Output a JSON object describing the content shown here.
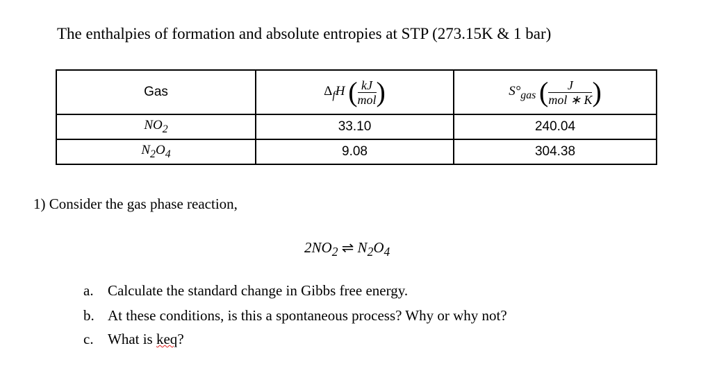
{
  "title": "The enthalpies of formation and absolute entropies at STP (273.15K & 1 bar)",
  "table": {
    "headers": {
      "gas": "Gas",
      "dh_sym": "Δ",
      "dh_sub": "f",
      "dh_var": "H",
      "dh_num": "kJ",
      "dh_den": "mol",
      "s_sym": "S°",
      "s_sub": "gas",
      "s_num": "J",
      "s_den": "mol ∗ K"
    },
    "rows": [
      {
        "gas": "NO",
        "gas_sub1": "",
        "gas_sub2": "2",
        "dh": "33.10",
        "s": "240.04"
      },
      {
        "gas_a": "N",
        "gas_sub1": "2",
        "gas_b": "O",
        "gas_sub2": "4",
        "dh": "9.08",
        "s": "304.38"
      }
    ]
  },
  "question": "1)  Consider the gas phase reaction,",
  "reaction": {
    "left": "2NO",
    "left_sub": "2",
    "arrow": "⇌",
    "right_a": "N",
    "right_sub1": "2",
    "right_b": "O",
    "right_sub2": "4"
  },
  "parts": [
    {
      "label": "a.",
      "text": "Calculate the standard change in Gibbs free energy."
    },
    {
      "label": "b.",
      "text": "At these conditions, is this a spontaneous process? Why or why not?"
    },
    {
      "label": "c.",
      "text": "What is ",
      "keq": "keq",
      "end": "?"
    }
  ]
}
